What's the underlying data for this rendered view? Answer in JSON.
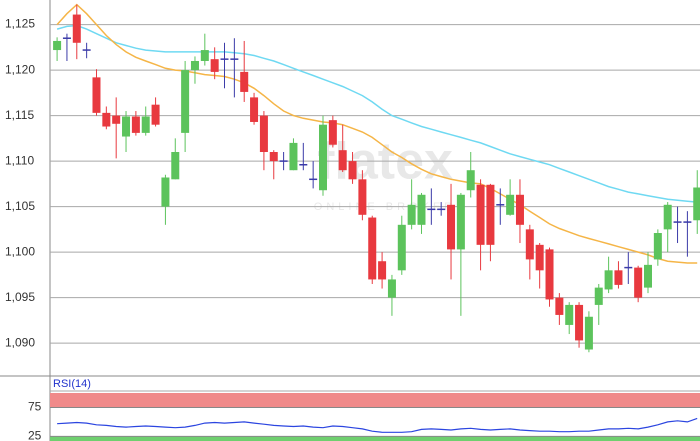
{
  "chart_data": [
    {
      "type": "candlestick",
      "watermark": {
        "logo": "flatex",
        "subtitle": "ONLINE BROKER"
      },
      "open": [
        1.1222,
        1.1235,
        1.1261,
        1.1222,
        1.1192,
        1.1153,
        1.115,
        1.1127,
        1.1149,
        1.1131,
        1.1162,
        1.105,
        1.108,
        1.1131,
        1.12,
        1.121,
        1.1212,
        1.1212,
        1.1212,
        1.1198,
        1.117,
        1.115,
        1.111,
        1.11,
        1.109,
        1.1096,
        1.108,
        1.1068,
        1.1145,
        1.1112,
        1.11,
        1.108,
        1.1038,
        1.099,
        1.095,
        1.098,
        1.103,
        1.103,
        1.1047,
        1.1047,
        1.1052,
        1.1003,
        1.1068,
        1.1074,
        1.1074,
        1.1052,
        1.1041,
        1.1063,
        1.1025,
        1.1008,
        1.1003,
        1.095,
        1.092,
        1.0942,
        1.0893,
        1.0942,
        1.0959,
        1.098,
        1.0983,
        1.0983,
        1.0961,
        1.0992,
        1.1025,
        1.1033,
        1.1033,
        1.1035
      ],
      "high": [
        1.1236,
        1.124,
        1.1272,
        1.123,
        1.1201,
        1.116,
        1.117,
        1.1155,
        1.1155,
        1.116,
        1.117,
        1.1085,
        1.1125,
        1.121,
        1.1215,
        1.124,
        1.1225,
        1.123,
        1.1235,
        1.1232,
        1.1175,
        1.1155,
        1.1112,
        1.111,
        1.1125,
        1.112,
        1.11,
        1.115,
        1.115,
        1.114,
        1.111,
        1.109,
        1.104,
        1.1,
        1.0975,
        1.104,
        1.108,
        1.1065,
        1.107,
        1.1055,
        1.1075,
        1.1065,
        1.111,
        1.108,
        1.1075,
        1.107,
        1.108,
        1.108,
        1.103,
        1.101,
        1.1005,
        1.0955,
        1.0945,
        1.0945,
        1.0935,
        1.0965,
        1.0995,
        1.099,
        1.1,
        1.0985,
        1.1,
        1.1025,
        1.1055,
        1.105,
        1.1045,
        1.109
      ],
      "low": [
        1.121,
        1.121,
        1.1212,
        1.1213,
        1.115,
        1.1135,
        1.1103,
        1.111,
        1.1128,
        1.1128,
        1.1138,
        1.103,
        1.108,
        1.111,
        1.1185,
        1.1205,
        1.119,
        1.118,
        1.117,
        1.1165,
        1.114,
        1.109,
        1.108,
        1.109,
        1.109,
        1.109,
        1.107,
        1.1062,
        1.1115,
        1.1088,
        1.1075,
        1.1035,
        1.0965,
        1.096,
        1.093,
        1.0975,
        1.1025,
        1.102,
        1.103,
        1.104,
        1.097,
        1.093,
        1.106,
        1.098,
        1.099,
        1.103,
        1.104,
        1.101,
        1.097,
        1.096,
        1.094,
        1.092,
        1.091,
        1.0895,
        1.089,
        1.092,
        1.0955,
        1.096,
        1.0965,
        1.0945,
        1.0955,
        1.0985,
        1.1,
        1.101,
        1.0995,
        1.102
      ],
      "close": [
        1.1232,
        1.1235,
        1.123,
        1.1222,
        1.1153,
        1.1138,
        1.1141,
        1.1149,
        1.1131,
        1.1149,
        1.114,
        1.1082,
        1.111,
        1.12,
        1.121,
        1.1222,
        1.1198,
        1.1212,
        1.1212,
        1.1176,
        1.1143,
        1.111,
        1.11,
        1.11,
        1.112,
        1.1096,
        1.108,
        1.114,
        1.1118,
        1.109,
        1.108,
        1.1041,
        1.097,
        1.097,
        1.097,
        1.103,
        1.1052,
        1.1063,
        1.1047,
        1.1047,
        1.1003,
        1.1063,
        1.109,
        1.1008,
        1.1008,
        1.1052,
        1.1063,
        1.103,
        1.0992,
        1.098,
        1.0948,
        1.0931,
        1.0942,
        1.0903,
        1.0929,
        1.0961,
        1.098,
        1.0964,
        1.0983,
        1.095,
        1.0986,
        1.1021,
        1.1052,
        1.1033,
        1.1033,
        1.1071
      ],
      "colors": {
        "up": "#5cc35c",
        "down": "#e8393f",
        "flat": "#3a3aa8"
      },
      "overlays": [
        {
          "color": "#6fd9f2",
          "values": [
            1.1245,
            1.1248,
            1.1249,
            1.1245,
            1.124,
            1.1235,
            1.123,
            1.1227,
            1.1224,
            1.1222,
            1.1221,
            1.122,
            1.122,
            1.122,
            1.122,
            1.122,
            1.122,
            1.122,
            1.1219,
            1.1218,
            1.1216,
            1.1213,
            1.121,
            1.1206,
            1.1202,
            1.1198,
            1.1194,
            1.119,
            1.1186,
            1.1182,
            1.1177,
            1.1172,
            1.1165,
            1.1157,
            1.115,
            1.1146,
            1.1142,
            1.1138,
            1.1135,
            1.1132,
            1.1129,
            1.1126,
            1.1123,
            1.112,
            1.1116,
            1.1112,
            1.1108,
            1.1105,
            1.1102,
            1.1099,
            1.1096,
            1.1092,
            1.1088,
            1.1084,
            1.108,
            1.1076,
            1.1072,
            1.1069,
            1.1066,
            1.1064,
            1.1062,
            1.106,
            1.1058,
            1.1057,
            1.1056,
            1.1055
          ]
        },
        {
          "color": "#f5b547",
          "values": [
            1.125,
            1.1262,
            1.1272,
            1.1262,
            1.125,
            1.1238,
            1.1228,
            1.122,
            1.1214,
            1.121,
            1.1206,
            1.1202,
            1.12,
            1.1199,
            1.1197,
            1.1195,
            1.1194,
            1.1193,
            1.119,
            1.1186,
            1.118,
            1.1172,
            1.1163,
            1.1155,
            1.115,
            1.1147,
            1.1145,
            1.1143,
            1.1142,
            1.114,
            1.1136,
            1.1132,
            1.1126,
            1.1118,
            1.111,
            1.1104,
            1.1097,
            1.1091,
            1.1086,
            1.1083,
            1.108,
            1.1078,
            1.1076,
            1.1075,
            1.107,
            1.1064,
            1.1058,
            1.1052,
            1.1045,
            1.1038,
            1.1031,
            1.1026,
            1.1022,
            1.1018,
            1.1015,
            1.1012,
            1.1009,
            1.1006,
            1.1003,
            1.1,
            1.0997,
            1.0993,
            1.099,
            1.0989,
            1.0988,
            1.0988
          ]
        }
      ],
      "ylim": [
        1.0865,
        1.1277
      ],
      "yticks": [
        {
          "value": 1.09,
          "label": "1,090"
        },
        {
          "value": 1.095,
          "label": "1,095"
        },
        {
          "value": 1.1,
          "label": "1,100"
        },
        {
          "value": 1.105,
          "label": "1,105"
        },
        {
          "value": 1.11,
          "label": "1,110"
        },
        {
          "value": 1.115,
          "label": "1,115"
        },
        {
          "value": 1.12,
          "label": "1,120"
        },
        {
          "value": 1.125,
          "label": "1,125"
        }
      ],
      "grid": true
    },
    {
      "type": "line",
      "title": "RSI(14)",
      "color": "#2b45e0",
      "values": [
        47,
        48,
        49,
        48,
        45,
        44,
        42,
        41,
        42,
        43,
        42,
        41,
        40,
        41,
        44,
        48,
        49,
        48,
        49,
        50,
        48,
        46,
        44,
        43,
        42,
        43,
        41,
        40,
        43,
        42,
        40,
        38,
        34,
        32,
        32,
        32,
        33,
        37,
        38,
        37,
        36,
        38,
        39,
        37,
        36,
        37,
        38,
        36,
        35,
        34,
        34,
        33,
        33,
        34,
        34,
        36,
        38,
        38,
        39,
        38,
        41,
        45,
        50,
        52,
        50,
        56
      ],
      "ylim": [
        17,
        100
      ],
      "yticks": [
        25,
        75
      ],
      "bands": {
        "upper_color": "#f08a8a",
        "lower_color": "#6fcf6f"
      }
    }
  ]
}
